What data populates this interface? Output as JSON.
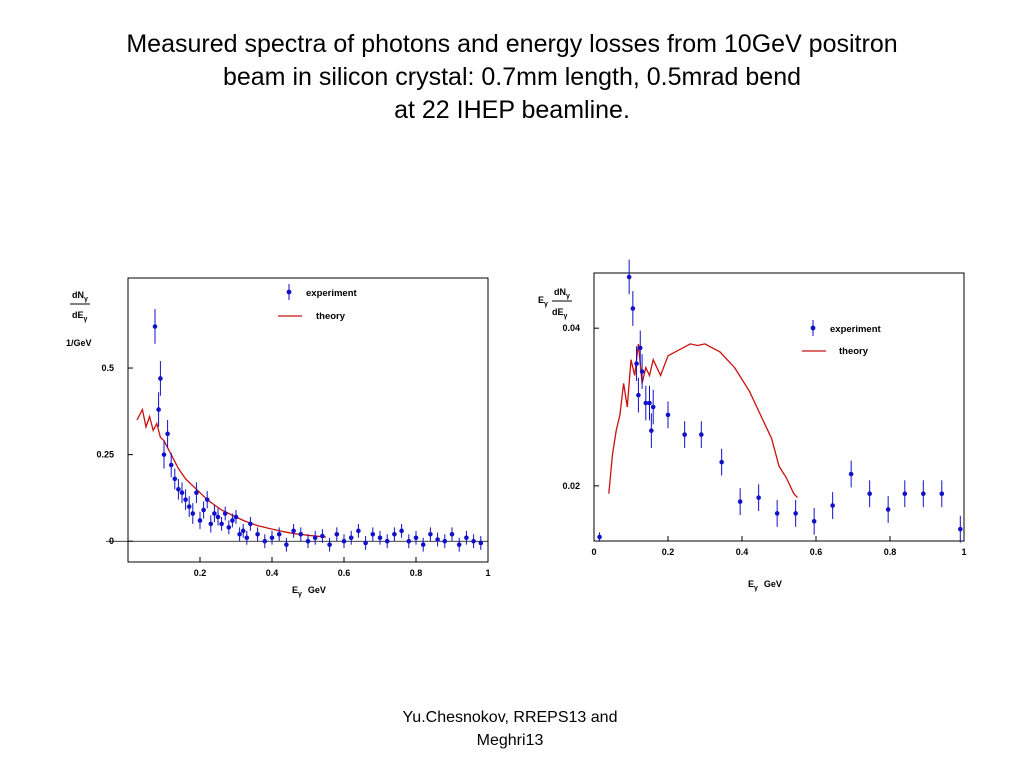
{
  "title_lines": [
    "Measured spectra of photons and energy losses from 10GeV positron",
    "beam in silicon crystal: 0.7mm length, 0.5mrad bend",
    "at 22 IHEP beamline."
  ],
  "footer": {
    "line1": "Yu.Chesnokov,   RREPS13 and",
    "line2": "Meghri13"
  },
  "colors": {
    "experiment": "#1010c8",
    "theory": "#cc1010"
  },
  "chart_data": [
    {
      "type": "scatter",
      "ylabel_num": "dN",
      "ylabel_num_sub": "γ",
      "ylabel_den": "dE",
      "ylabel_den_sub": "γ",
      "yunit": "1/GeV",
      "xlabel": "E",
      "xlabel_sub": "γ",
      "xunit": "GeV",
      "xlim": [
        0,
        1
      ],
      "ylim": [
        -0.06,
        0.76
      ],
      "xticks": [
        0.2,
        0.4,
        0.6,
        0.8,
        1
      ],
      "xtick_labels": [
        "0.2",
        "0.4",
        "0.6",
        "0.8",
        "1"
      ],
      "yticks": [
        0,
        0.25,
        0.5
      ],
      "ytick_labels": [
        "0",
        "0.25",
        "0.5"
      ],
      "legend": {
        "placement": "top-center",
        "entries": [
          "experiment",
          "theory"
        ]
      },
      "series": [
        {
          "name": "experiment",
          "kind": "points",
          "x": [
            0.075,
            0.085,
            0.09,
            0.1,
            0.11,
            0.12,
            0.13,
            0.14,
            0.15,
            0.16,
            0.17,
            0.18,
            0.19,
            0.2,
            0.21,
            0.22,
            0.23,
            0.24,
            0.25,
            0.26,
            0.27,
            0.28,
            0.29,
            0.3,
            0.31,
            0.32,
            0.33,
            0.34,
            0.36,
            0.38,
            0.4,
            0.42,
            0.44,
            0.46,
            0.48,
            0.5,
            0.52,
            0.54,
            0.56,
            0.58,
            0.6,
            0.62,
            0.64,
            0.66,
            0.68,
            0.7,
            0.72,
            0.74,
            0.76,
            0.78,
            0.8,
            0.82,
            0.84,
            0.86,
            0.88,
            0.9,
            0.92,
            0.94,
            0.96,
            0.98
          ],
          "y": [
            0.62,
            0.38,
            0.47,
            0.25,
            0.31,
            0.22,
            0.18,
            0.15,
            0.14,
            0.12,
            0.1,
            0.08,
            0.14,
            0.06,
            0.09,
            0.12,
            0.05,
            0.08,
            0.07,
            0.05,
            0.08,
            0.04,
            0.06,
            0.07,
            0.02,
            0.03,
            0.01,
            0.05,
            0.02,
            0.0,
            0.01,
            0.02,
            -0.01,
            0.03,
            0.02,
            0.0,
            0.01,
            0.015,
            -0.01,
            0.02,
            0.0,
            0.01,
            0.03,
            -0.005,
            0.02,
            0.01,
            0.0,
            0.02,
            0.03,
            0.0,
            0.01,
            -0.01,
            0.02,
            0.005,
            0.0,
            0.02,
            -0.01,
            0.01,
            0.0,
            -0.005
          ],
          "yerr": [
            0.05,
            0.05,
            0.05,
            0.04,
            0.04,
            0.035,
            0.03,
            0.03,
            0.03,
            0.03,
            0.03,
            0.03,
            0.03,
            0.025,
            0.025,
            0.025,
            0.025,
            0.025,
            0.025,
            0.02,
            0.02,
            0.02,
            0.02,
            0.02,
            0.02,
            0.02,
            0.02,
            0.02,
            0.02,
            0.02,
            0.02,
            0.02,
            0.02,
            0.02,
            0.02,
            0.02,
            0.02,
            0.02,
            0.02,
            0.02,
            0.02,
            0.02,
            0.02,
            0.02,
            0.02,
            0.02,
            0.02,
            0.02,
            0.02,
            0.02,
            0.02,
            0.02,
            0.02,
            0.02,
            0.02,
            0.02,
            0.02,
            0.02,
            0.02,
            0.02
          ]
        },
        {
          "name": "theory",
          "kind": "line",
          "x": [
            0.025,
            0.04,
            0.05,
            0.06,
            0.07,
            0.08,
            0.09,
            0.1,
            0.12,
            0.14,
            0.16,
            0.18,
            0.2,
            0.22,
            0.24,
            0.26,
            0.28,
            0.3,
            0.32,
            0.34,
            0.36,
            0.38,
            0.4,
            0.42,
            0.44,
            0.46,
            0.48,
            0.5,
            0.52,
            0.54,
            0.55
          ],
          "y": [
            0.35,
            0.38,
            0.33,
            0.36,
            0.32,
            0.34,
            0.3,
            0.29,
            0.25,
            0.21,
            0.18,
            0.16,
            0.14,
            0.12,
            0.105,
            0.09,
            0.08,
            0.07,
            0.06,
            0.052,
            0.045,
            0.04,
            0.035,
            0.03,
            0.026,
            0.022,
            0.02,
            0.017,
            0.015,
            0.013,
            0.012
          ]
        }
      ]
    },
    {
      "type": "scatter",
      "ylabel_pre": "E",
      "ylabel_pre_sub": "γ",
      "ylabel_num": "dN",
      "ylabel_num_sub": "γ",
      "ylabel_den": "dE",
      "ylabel_den_sub": "γ",
      "xlabel": "E",
      "xlabel_sub": "γ",
      "xunit": "GeV",
      "xlim": [
        0,
        1
      ],
      "ylim": [
        0.013,
        0.047
      ],
      "xticks": [
        0,
        0.2,
        0.4,
        0.6,
        0.8,
        1
      ],
      "xtick_labels": [
        "0",
        "0.2",
        "0.4",
        "0.6",
        "0.8",
        "1"
      ],
      "yticks": [
        0.02,
        0.04
      ],
      "ytick_labels": [
        "0.02",
        "0.04"
      ],
      "legend": {
        "placement": "top-right",
        "entries": [
          "experiment",
          "theory"
        ]
      },
      "series": [
        {
          "name": "experiment",
          "kind": "points",
          "x": [
            0.015,
            0.095,
            0.105,
            0.115,
            0.12,
            0.125,
            0.13,
            0.14,
            0.15,
            0.155,
            0.16,
            0.2,
            0.245,
            0.29,
            0.345,
            0.395,
            0.445,
            0.495,
            0.545,
            0.595,
            0.645,
            0.695,
            0.745,
            0.795,
            0.84,
            0.89,
            0.94,
            0.99
          ],
          "y": [
            0.0135,
            0.0465,
            0.0425,
            0.0355,
            0.0315,
            0.0375,
            0.0345,
            0.0305,
            0.0305,
            0.027,
            0.03,
            0.029,
            0.0265,
            0.0265,
            0.023,
            0.018,
            0.0185,
            0.0165,
            0.0165,
            0.0155,
            0.0175,
            0.0215,
            0.019,
            0.017,
            0.019,
            0.019,
            0.019,
            0.0145
          ],
          "yerr": [
            0.0006,
            0.0022,
            0.0022,
            0.0022,
            0.0022,
            0.0022,
            0.0022,
            0.0022,
            0.0022,
            0.0022,
            0.0022,
            0.0017,
            0.0017,
            0.0017,
            0.0017,
            0.0017,
            0.0017,
            0.0017,
            0.0017,
            0.0017,
            0.0017,
            0.0017,
            0.0017,
            0.0017,
            0.0017,
            0.0017,
            0.0017,
            0.0017
          ]
        },
        {
          "name": "theory",
          "kind": "line",
          "x": [
            0.04,
            0.05,
            0.06,
            0.07,
            0.08,
            0.09,
            0.1,
            0.11,
            0.12,
            0.13,
            0.14,
            0.15,
            0.16,
            0.18,
            0.2,
            0.22,
            0.24,
            0.26,
            0.28,
            0.3,
            0.32,
            0.34,
            0.36,
            0.38,
            0.4,
            0.42,
            0.44,
            0.46,
            0.48,
            0.5,
            0.52,
            0.54,
            0.55
          ],
          "y": [
            0.019,
            0.024,
            0.027,
            0.029,
            0.033,
            0.03,
            0.036,
            0.034,
            0.038,
            0.033,
            0.035,
            0.034,
            0.036,
            0.034,
            0.0365,
            0.037,
            0.0375,
            0.038,
            0.0378,
            0.038,
            0.0375,
            0.037,
            0.036,
            0.035,
            0.0335,
            0.032,
            0.03,
            0.028,
            0.026,
            0.0225,
            0.021,
            0.019,
            0.0185
          ]
        }
      ]
    }
  ]
}
